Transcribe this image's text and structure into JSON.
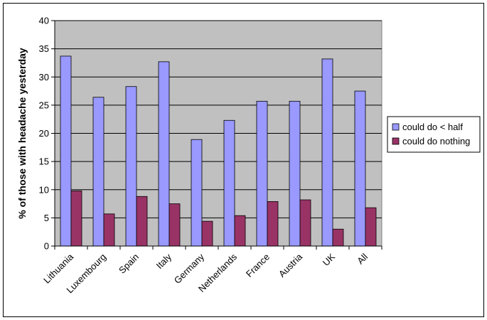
{
  "chart_data": {
    "type": "bar",
    "ylabel": "% of those with headache yesterday",
    "xlabel": "",
    "ylim": [
      0,
      40
    ],
    "ytick_step": 5,
    "grid": true,
    "legend_position": "right",
    "categories": [
      "Lithuania",
      "Luxembourg",
      "Spain",
      "Italy",
      "Germany",
      "Netherlands",
      "France",
      "Austria",
      "UK",
      "All"
    ],
    "series": [
      {
        "name": "could do < half",
        "color": "#9999ff",
        "values": [
          33.7,
          26.4,
          28.3,
          32.7,
          18.9,
          22.3,
          25.7,
          25.7,
          33.2,
          27.5
        ]
      },
      {
        "name": "could do nothing",
        "color": "#993366",
        "values": [
          9.8,
          5.7,
          8.8,
          7.5,
          4.4,
          5.4,
          7.9,
          8.2,
          3.0,
          6.8
        ]
      }
    ],
    "plot_background": "#c0c0c0"
  }
}
